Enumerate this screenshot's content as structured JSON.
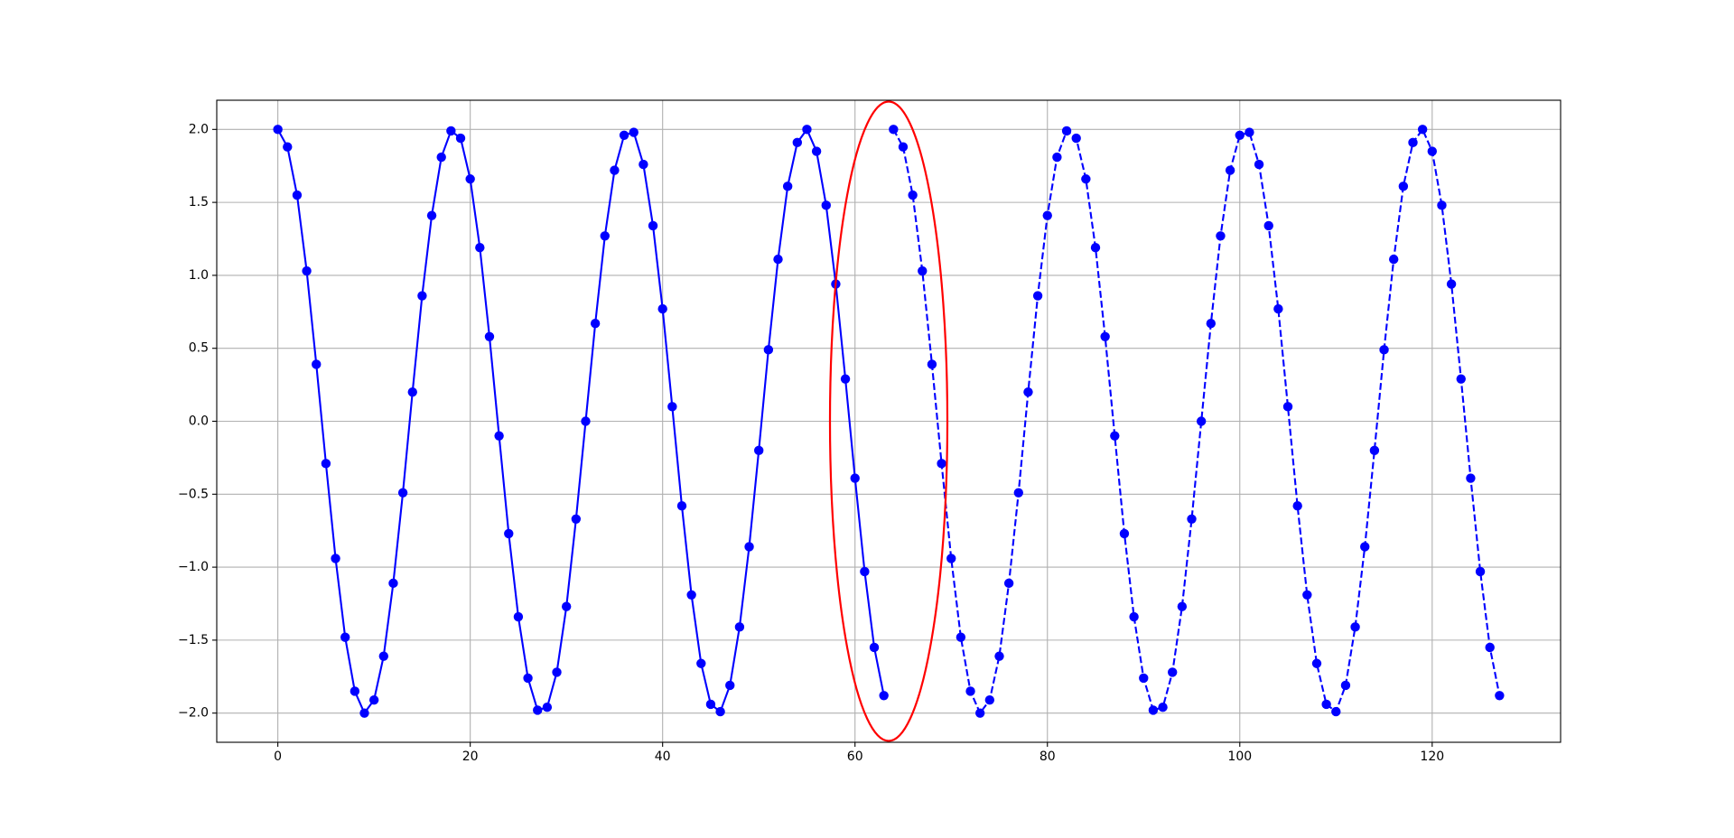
{
  "chart_data": {
    "type": "line",
    "series": [
      {
        "color": "#0000ff",
        "linestyle": "solid",
        "marker": "circle",
        "x": [
          0,
          1,
          2,
          3,
          4,
          5,
          6,
          7,
          8,
          9,
          10,
          11,
          12,
          13,
          14,
          15,
          16,
          17,
          18,
          19,
          20,
          21,
          22,
          23,
          24,
          25,
          26,
          27,
          28,
          29,
          30,
          31,
          32,
          33,
          34,
          35,
          36,
          37,
          38,
          39,
          40,
          41,
          42,
          43,
          44,
          45,
          46,
          47,
          48,
          49,
          50,
          51,
          52,
          53,
          54,
          55,
          56,
          57,
          58,
          59,
          60,
          61,
          62,
          63
        ],
        "values": [
          2.0,
          1.88,
          1.55,
          1.03,
          0.39,
          -0.29,
          -0.94,
          -1.48,
          -1.85,
          -2.0,
          -1.91,
          -1.61,
          -1.11,
          -0.49,
          0.2,
          0.86,
          1.41,
          1.81,
          1.99,
          1.94,
          1.66,
          1.19,
          0.58,
          -0.1,
          -0.77,
          -1.34,
          -1.76,
          -1.98,
          -1.96,
          -1.72,
          -1.27,
          -0.67,
          0.0,
          0.67,
          1.27,
          1.72,
          1.96,
          1.98,
          1.76,
          1.34,
          0.77,
          0.1,
          -0.58,
          -1.19,
          -1.66,
          -1.94,
          -1.99,
          -1.81,
          -1.41,
          -0.86,
          -0.2,
          0.49,
          1.11,
          1.61,
          1.91,
          2.0,
          1.85,
          1.48,
          0.94,
          0.29,
          -0.39,
          -1.03,
          -1.55,
          -1.88
        ]
      },
      {
        "color": "#0000ff",
        "linestyle": "dashed",
        "marker": "circle",
        "x": [
          64,
          65,
          66,
          67,
          68,
          69,
          70,
          71,
          72,
          73,
          74,
          75,
          76,
          77,
          78,
          79,
          80,
          81,
          82,
          83,
          84,
          85,
          86,
          87,
          88,
          89,
          90,
          91,
          92,
          93,
          94,
          95,
          96,
          97,
          98,
          99,
          100,
          101,
          102,
          103,
          104,
          105,
          106,
          107,
          108,
          109,
          110,
          111,
          112,
          113,
          114,
          115,
          116,
          117,
          118,
          119,
          120,
          121,
          122,
          123,
          124,
          125,
          126,
          127
        ],
        "values": [
          2.0,
          1.88,
          1.55,
          1.03,
          0.39,
          -0.29,
          -0.94,
          -1.48,
          -1.85,
          -2.0,
          -1.91,
          -1.61,
          -1.11,
          -0.49,
          0.2,
          0.86,
          1.41,
          1.81,
          1.99,
          1.94,
          1.66,
          1.19,
          0.58,
          -0.1,
          -0.77,
          -1.34,
          -1.76,
          -1.98,
          -1.96,
          -1.72,
          -1.27,
          -0.67,
          0.0,
          0.67,
          1.27,
          1.72,
          1.96,
          1.98,
          1.76,
          1.34,
          0.77,
          0.1,
          -0.58,
          -1.19,
          -1.66,
          -1.94,
          -1.99,
          -1.81,
          -1.41,
          -0.86,
          -0.2,
          0.49,
          1.11,
          1.61,
          1.91,
          2.0,
          1.85,
          1.48,
          0.94,
          0.29,
          -0.39,
          -1.03,
          -1.55,
          -1.88
        ]
      }
    ],
    "highlight_color": "#ff0000",
    "xlim": [
      -6.35,
      133.35
    ],
    "xticks": [
      0,
      20,
      40,
      60,
      80,
      100,
      120
    ],
    "ylim": [
      -2.2,
      2.2
    ],
    "yticks": [
      {
        "value": -2.0,
        "label": "−2.0"
      },
      {
        "value": -1.5,
        "label": "−1.5"
      },
      {
        "value": -1.0,
        "label": "−1.0"
      },
      {
        "value": -0.5,
        "label": "−0.5"
      },
      {
        "value": 0.0,
        "label": "0.0"
      },
      {
        "value": 0.5,
        "label": "0.5"
      },
      {
        "value": 1.0,
        "label": "1.0"
      },
      {
        "value": 1.5,
        "label": "1.5"
      },
      {
        "value": 2.0,
        "label": "2.0"
      }
    ],
    "grid": true
  }
}
